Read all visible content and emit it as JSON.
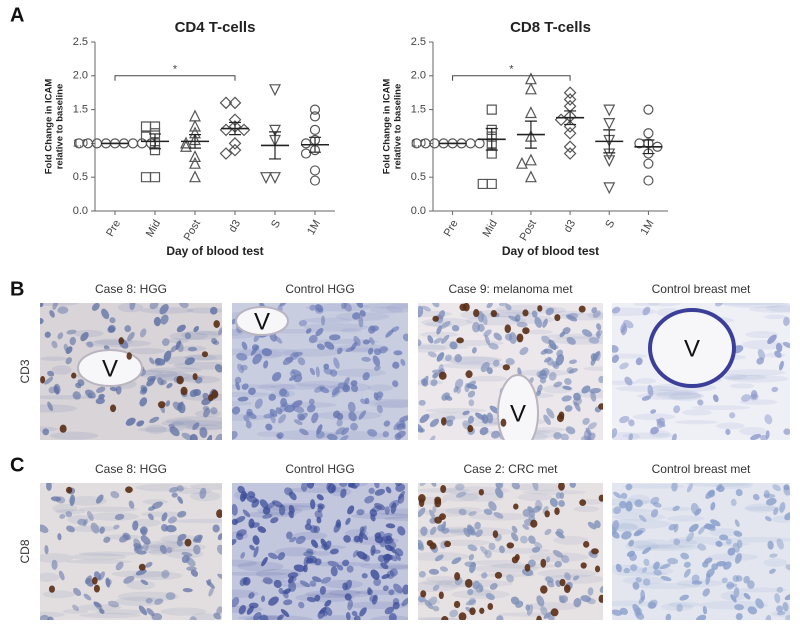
{
  "chart_data": [
    {
      "type": "dot",
      "title": "CD4  T-cells",
      "xlabel": "Day of blood test",
      "ylabel": [
        "Fold Change in ICAM",
        "relative to baseline"
      ],
      "categories": [
        "Pre",
        "Mid",
        "Post",
        "d3",
        "S",
        "1M"
      ],
      "markers": [
        "circle",
        "square",
        "triangle",
        "diamond",
        "triangle-down",
        "circle"
      ],
      "color": "#555555",
      "values": [
        [
          1.0,
          1.0,
          1.0,
          1.0,
          1.0,
          1.0,
          1.0,
          1.0,
          1.0
        ],
        [
          1.25,
          1.25,
          1.15,
          1.1,
          1.0,
          0.9,
          0.5,
          0.5
        ],
        [
          1.4,
          1.25,
          1.15,
          1.05,
          1.0,
          0.95,
          0.8,
          0.7,
          0.5
        ],
        [
          1.6,
          1.6,
          1.35,
          1.25,
          1.2,
          1.2,
          1.0,
          0.9,
          0.85
        ],
        [
          1.8,
          1.2,
          1.05,
          0.5,
          0.5
        ],
        [
          1.5,
          1.4,
          1.2,
          1.05,
          1.0,
          0.9,
          0.85,
          0.6,
          0.45
        ]
      ],
      "means": [
        1.0,
        1.03,
        1.03,
        1.22,
        0.97,
        0.98
      ],
      "errors": [
        0.0,
        0.11,
        0.1,
        0.09,
        0.2,
        0.11
      ],
      "brackets": [
        {
          "label": "*",
          "from": 0,
          "to": 3,
          "y": 2.0
        }
      ],
      "ylim": [
        0,
        2.5
      ],
      "yticks": [
        {
          "value": 0,
          "label": "0.0"
        },
        0.5,
        {
          "value": 1,
          "label": "1.0"
        },
        1.5,
        {
          "value": 2,
          "label": "2.0"
        },
        2.5
      ]
    },
    {
      "type": "dot",
      "title": "CD8 T-cells",
      "xlabel": "Day of blood test",
      "ylabel": [
        "Fold Change in ICAM",
        "relative to baseline"
      ],
      "categories": [
        "Pre",
        "Mid",
        "Post",
        "d3",
        "S",
        "1M"
      ],
      "markers": [
        "circle",
        "square",
        "triangle",
        "diamond",
        "triangle-down",
        "circle"
      ],
      "color": "#555555",
      "values": [
        [
          1.0,
          1.0,
          1.0,
          1.0,
          1.0,
          1.0,
          1.0,
          1.0
        ],
        [
          1.5,
          1.2,
          1.1,
          1.0,
          0.85,
          0.4,
          0.4
        ],
        [
          1.95,
          1.8,
          1.45,
          1.1,
          0.75,
          0.7,
          0.5
        ],
        [
          1.75,
          1.65,
          1.55,
          1.4,
          1.35,
          1.25,
          1.15,
          0.95,
          0.85
        ],
        [
          1.5,
          1.3,
          1.05,
          0.85,
          0.75,
          0.35
        ],
        [
          1.5,
          1.15,
          1.0,
          1.0,
          0.95,
          0.85,
          0.7,
          0.45
        ]
      ],
      "means": [
        1.0,
        1.06,
        1.13,
        1.38,
        1.03,
        0.95
      ],
      "errors": [
        0.0,
        0.16,
        0.2,
        0.1,
        0.17,
        0.1
      ],
      "brackets": [
        {
          "label": "*",
          "from": 0,
          "to": 3,
          "y": 2.0
        }
      ],
      "ylim": [
        0,
        2.5
      ],
      "yticks": [
        {
          "value": 0,
          "label": "0.0"
        },
        0.5,
        {
          "value": 1,
          "label": "1.0"
        },
        1.5,
        {
          "value": 2,
          "label": "2.0"
        },
        2.5
      ]
    }
  ],
  "panel_a_label": "A",
  "rows": [
    {
      "label": "B",
      "marker": "CD3",
      "images": [
        {
          "caption": "Case 8: HGG",
          "vessel": "V"
        },
        {
          "caption": "Control HGG",
          "vessel": "V"
        },
        {
          "caption": "Case 9: melanoma met",
          "vessel": "V"
        },
        {
          "caption": "Control breast met",
          "vessel": "V"
        }
      ]
    },
    {
      "label": "C",
      "marker": "CD8",
      "images": [
        {
          "caption": "Case 8: HGG"
        },
        {
          "caption": "Control HGG"
        },
        {
          "caption": "Case 2: CRC met"
        },
        {
          "caption": "Control breast met"
        }
      ]
    }
  ]
}
